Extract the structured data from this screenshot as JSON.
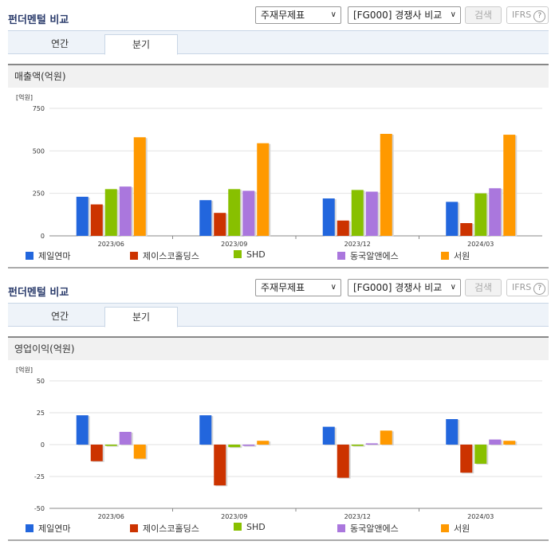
{
  "colors": {
    "s1": "#2266dd",
    "s2": "#cc3300",
    "s3": "#88c000",
    "s4": "#aa77dd",
    "s5": "#ff9900"
  },
  "panels": [
    {
      "title": "펀더멘털 비교",
      "select1": "주재무제표",
      "select2": "[FG000] 경쟁사 비교",
      "search_label": "검색",
      "ifrs_label": "IFRS",
      "ifrs_help": "?",
      "tabs": [
        "연간",
        "분기"
      ],
      "active_tab": 1,
      "subheading": "매출액(억원)",
      "unit": "[억원]",
      "legend": [
        "제일연마",
        "제이스코홀딩스",
        "SHD",
        "동국알앤에스",
        "서원"
      ]
    },
    {
      "title": "펀더멘털 비교",
      "select1": "주재무제표",
      "select2": "[FG000] 경쟁사 비교",
      "search_label": "검색",
      "ifrs_label": "IFRS",
      "ifrs_help": "?",
      "tabs": [
        "연간",
        "분기"
      ],
      "active_tab": 1,
      "subheading": "영업이익(억원)",
      "unit": "[억원]",
      "legend": [
        "제일연마",
        "제이스코홀딩스",
        "SHD",
        "동국알앤에스",
        "서원"
      ]
    }
  ],
  "chart_data": [
    {
      "type": "bar",
      "categories": [
        "2023/06",
        "2023/09",
        "2023/12",
        "2024/03"
      ],
      "ylim": [
        0,
        750
      ],
      "yticks": [
        "0",
        "250",
        "500",
        "750"
      ],
      "ytick_values": [
        0,
        250,
        500,
        750
      ],
      "series": [
        {
          "name": "제일연마",
          "values": [
            230,
            210,
            220,
            200
          ]
        },
        {
          "name": "제이스코홀딩스",
          "values": [
            185,
            135,
            90,
            75
          ]
        },
        {
          "name": "SHD",
          "values": [
            275,
            275,
            270,
            250
          ]
        },
        {
          "name": "동국알앤에스",
          "values": [
            290,
            265,
            260,
            280
          ]
        },
        {
          "name": "서원",
          "values": [
            580,
            545,
            600,
            595
          ]
        }
      ]
    },
    {
      "type": "bar",
      "categories": [
        "2023/06",
        "2023/09",
        "2023/12",
        "2024/03"
      ],
      "ylim": [
        -50,
        50
      ],
      "yticks": [
        "-50",
        "-25",
        "0",
        "25",
        "50"
      ],
      "ytick_values": [
        -50,
        -25,
        0,
        25,
        50
      ],
      "series": [
        {
          "name": "제일연마",
          "values": [
            23,
            23,
            14,
            20
          ]
        },
        {
          "name": "제이스코홀딩스",
          "values": [
            -13,
            -32,
            -26,
            -22
          ]
        },
        {
          "name": "SHD",
          "values": [
            -1,
            -2,
            -1,
            -15
          ]
        },
        {
          "name": "동국알앤에스",
          "values": [
            10,
            -1,
            1,
            4
          ]
        },
        {
          "name": "서원",
          "values": [
            -11,
            3,
            11,
            3
          ]
        }
      ]
    }
  ]
}
